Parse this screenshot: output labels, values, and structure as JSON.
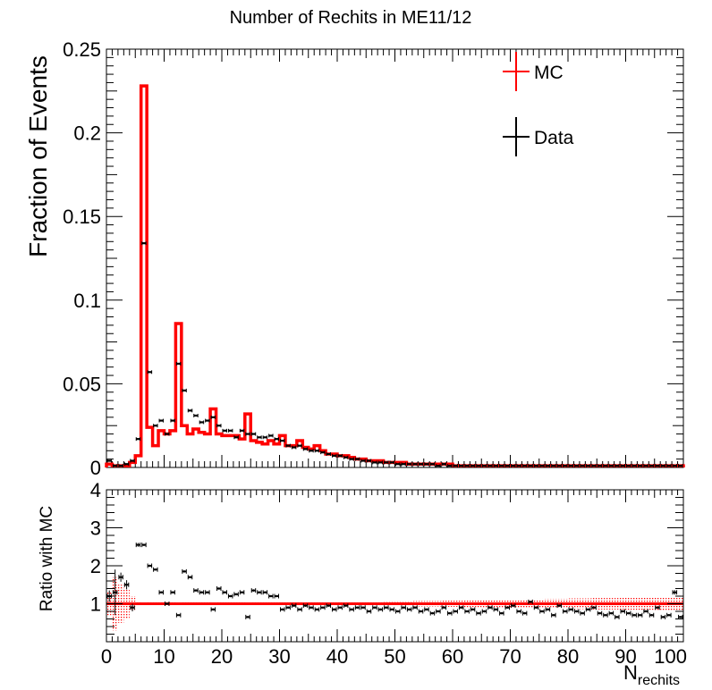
{
  "chart_data": [
    {
      "type": "histogram",
      "title": "Number of Rechits in ME11/12",
      "ylabel": "Fraction of Events",
      "xlim": [
        0,
        100
      ],
      "ylim": [
        0,
        0.25
      ],
      "y_ticks": [
        "0",
        "0.05",
        "0.1",
        "0.15",
        "0.2",
        "0.25"
      ],
      "y_tick_values": [
        0,
        0.05,
        0.1,
        0.15,
        0.2,
        0.25
      ],
      "bin_width": 1,
      "legend": [
        {
          "label": "MC",
          "color": "#ff0000"
        },
        {
          "label": "Data",
          "color": "#000000"
        }
      ],
      "series": [
        {
          "name": "MC",
          "color": "#ff0000",
          "style": "step",
          "values": [
            0.002,
            0.001,
            0.001,
            0.001,
            0.003,
            0.007,
            0.228,
            0.024,
            0.013,
            0.022,
            0.02,
            0.022,
            0.086,
            0.025,
            0.02,
            0.023,
            0.021,
            0.02,
            0.035,
            0.02,
            0.019,
            0.019,
            0.019,
            0.017,
            0.032,
            0.016,
            0.015,
            0.014,
            0.016,
            0.014,
            0.019,
            0.013,
            0.013,
            0.016,
            0.012,
            0.011,
            0.013,
            0.01,
            0.008,
            0.008,
            0.007,
            0.007,
            0.006,
            0.005,
            0.005,
            0.004,
            0.004,
            0.004,
            0.003,
            0.003,
            0.003,
            0.003,
            0.002,
            0.002,
            0.002,
            0.002,
            0.002,
            0.002,
            0.002,
            0.002,
            0.001,
            0.001,
            0.001,
            0.001,
            0.001,
            0.001,
            0.001,
            0.001,
            0.001,
            0.001,
            0.001,
            0.001,
            0.001,
            0.001,
            0.001,
            0.001,
            0.001,
            0.001,
            0.001,
            0.001,
            0.001,
            0.001,
            0.001,
            0.001,
            0.001,
            0.001,
            0.001,
            0.001,
            0.001,
            0.001,
            0.001,
            0.001,
            0.001,
            0.001,
            0.001,
            0.001,
            0.001,
            0.001,
            0.001,
            0.001
          ]
        },
        {
          "name": "Data",
          "color": "#000000",
          "style": "points",
          "values": [
            0.004,
            0.001,
            0.001,
            0.002,
            0.004,
            0.017,
            0.134,
            0.057,
            0.025,
            0.028,
            0.02,
            0.028,
            0.062,
            0.046,
            0.034,
            0.031,
            0.027,
            0.028,
            0.03,
            0.025,
            0.022,
            0.022,
            0.018,
            0.022,
            0.02,
            0.02,
            0.018,
            0.018,
            0.019,
            0.017,
            0.016,
            0.013,
            0.012,
            0.013,
            0.011,
            0.01,
            0.01,
            0.009,
            0.008,
            0.007,
            0.007,
            0.006,
            0.005,
            0.005,
            0.004,
            0.004,
            0.003,
            0.003,
            0.003,
            0.003,
            0.002,
            0.002,
            0.002,
            0.002,
            0.002,
            0.002,
            0.002,
            0.001,
            0.002,
            0.001,
            0.001,
            0.001,
            0.001,
            0.001,
            0.001,
            0.001,
            0.001,
            0.001,
            0.001,
            0.001,
            0.001,
            0.001,
            0.001,
            0.001,
            0.001,
            0.001,
            0.001,
            0.001,
            0.001,
            0.001,
            0.001,
            0.001,
            0.001,
            0.001,
            0.001,
            0.001,
            0.001,
            0.001,
            0.001,
            0.001,
            0.001,
            0.001,
            0.001,
            0.001,
            0.001,
            0.001,
            0.001,
            0.001,
            0.001,
            0.001
          ]
        }
      ]
    },
    {
      "type": "ratio",
      "ylabel": "Ratio with MC",
      "xlabel_main": "N",
      "xlabel_sub": "rechits",
      "xlim": [
        0,
        100
      ],
      "ylim": [
        0,
        4
      ],
      "x_ticks": [
        "0",
        "10",
        "20",
        "30",
        "40",
        "50",
        "60",
        "70",
        "80",
        "90",
        "100"
      ],
      "x_tick_values": [
        0,
        10,
        20,
        30,
        40,
        50,
        60,
        70,
        80,
        90,
        100
      ],
      "y_ticks": [
        "1",
        "2",
        "3",
        "4"
      ],
      "y_tick_values": [
        1,
        2,
        3,
        4
      ],
      "reference_line": 1,
      "reference_color": "#ff0000",
      "ratio_values": [
        1.2,
        1.3,
        1.7,
        1.5,
        0.9,
        2.55,
        2.55,
        2.0,
        1.9,
        1.3,
        1.0,
        1.3,
        0.7,
        1.85,
        1.7,
        1.35,
        1.3,
        1.3,
        0.85,
        1.4,
        1.3,
        1.2,
        1.25,
        1.3,
        0.65,
        1.35,
        1.3,
        1.3,
        1.2,
        1.2,
        0.85,
        0.9,
        0.95,
        0.85,
        0.95,
        0.9,
        0.85,
        0.9,
        0.95,
        0.85,
        0.9,
        0.95,
        0.85,
        0.9,
        0.9,
        0.8,
        0.9,
        0.85,
        0.9,
        0.85,
        0.8,
        0.9,
        0.85,
        0.9,
        0.8,
        0.85,
        0.75,
        0.8,
        0.9,
        0.75,
        0.8,
        0.9,
        0.8,
        0.85,
        0.75,
        0.8,
        0.9,
        0.85,
        0.75,
        0.9,
        0.95,
        0.8,
        0.75,
        1.05,
        0.9,
        0.8,
        0.85,
        0.7,
        0.95,
        0.8,
        0.85,
        0.8,
        0.75,
        0.85,
        0.9,
        0.75,
        0.7,
        0.75,
        0.65,
        0.8,
        0.75,
        0.7,
        0.7,
        0.8,
        0.7,
        0.9,
        0.65,
        0.7,
        1.3,
        0.65
      ],
      "ratio_errors": [
        0.15,
        0.6,
        0.12,
        0.12,
        0.1,
        0.05,
        0.03,
        0.03,
        0.03,
        0.03,
        0.03,
        0.03,
        0.02,
        0.03,
        0.03,
        0.03,
        0.03,
        0.03,
        0.03,
        0.03,
        0.03,
        0.03,
        0.03,
        0.03,
        0.03,
        0.03,
        0.03,
        0.03,
        0.03,
        0.03,
        0.03,
        0.03,
        0.03,
        0.03,
        0.03,
        0.03,
        0.03,
        0.03,
        0.03,
        0.03,
        0.03,
        0.03,
        0.03,
        0.03,
        0.03,
        0.03,
        0.03,
        0.03,
        0.03,
        0.03,
        0.03,
        0.03,
        0.03,
        0.03,
        0.03,
        0.03,
        0.03,
        0.03,
        0.03,
        0.03,
        0.03,
        0.03,
        0.03,
        0.03,
        0.03,
        0.03,
        0.03,
        0.03,
        0.03,
        0.03,
        0.03,
        0.03,
        0.03,
        0.03,
        0.03,
        0.03,
        0.03,
        0.03,
        0.03,
        0.03,
        0.03,
        0.03,
        0.03,
        0.03,
        0.03,
        0.03,
        0.03,
        0.03,
        0.03,
        0.03,
        0.03,
        0.03,
        0.03,
        0.03,
        0.03,
        0.03,
        0.03,
        0.03,
        0.06,
        0.03
      ],
      "band_halfwidths": [
        0.3,
        0.7,
        0.5,
        0.4,
        0.2,
        0.05,
        0.03,
        0.05,
        0.05,
        0.05,
        0.05,
        0.05,
        0.03,
        0.05,
        0.05,
        0.05,
        0.05,
        0.05,
        0.04,
        0.05,
        0.05,
        0.05,
        0.05,
        0.05,
        0.04,
        0.05,
        0.05,
        0.05,
        0.05,
        0.05,
        0.05,
        0.05,
        0.05,
        0.05,
        0.05,
        0.05,
        0.05,
        0.05,
        0.05,
        0.05,
        0.05,
        0.05,
        0.05,
        0.05,
        0.05,
        0.05,
        0.05,
        0.05,
        0.06,
        0.06,
        0.06,
        0.06,
        0.06,
        0.07,
        0.07,
        0.07,
        0.07,
        0.07,
        0.08,
        0.08,
        0.08,
        0.08,
        0.09,
        0.09,
        0.09,
        0.1,
        0.1,
        0.1,
        0.1,
        0.11,
        0.11,
        0.11,
        0.12,
        0.12,
        0.12,
        0.12,
        0.13,
        0.13,
        0.13,
        0.13,
        0.14,
        0.14,
        0.14,
        0.14,
        0.15,
        0.15,
        0.15,
        0.15,
        0.15,
        0.16,
        0.16,
        0.16,
        0.16,
        0.16,
        0.16,
        0.17,
        0.17,
        0.17,
        0.17,
        0.17
      ]
    }
  ]
}
